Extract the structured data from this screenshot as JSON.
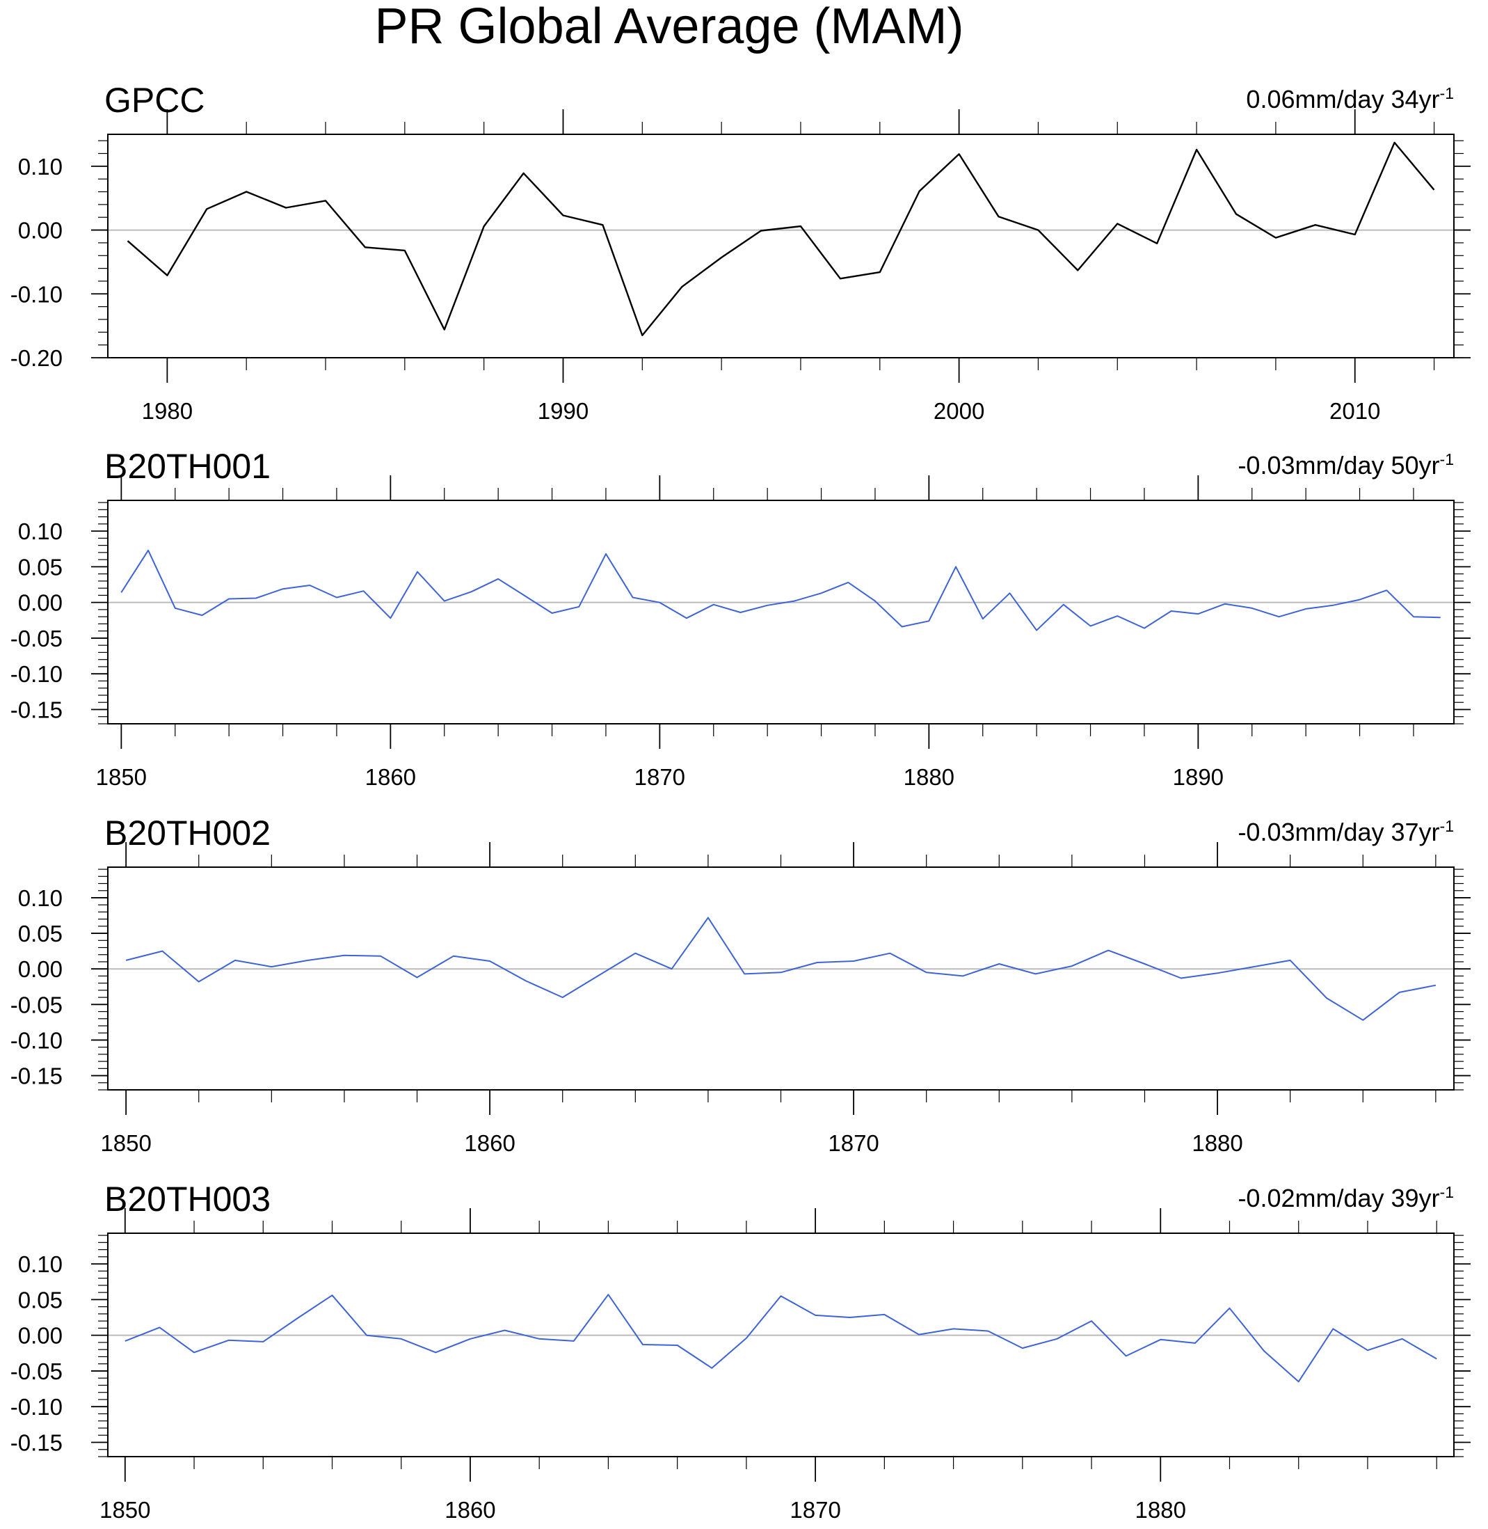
{
  "title": "PR Global Average (MAM)",
  "colors": {
    "observed": "#000000",
    "model": "#3d63d8",
    "zero_line": "#bbbbbb",
    "frame": "#000000"
  },
  "chart_data": [
    {
      "type": "line",
      "title": "GPCC",
      "trend": {
        "value": "0.06mm/day 34yr",
        "sup": "-1"
      },
      "color": "#000000",
      "xlim": [
        1978.5,
        2012.5
      ],
      "ylim": [
        -0.2,
        0.15
      ],
      "yticks": [
        0.1,
        0.0,
        -0.1,
        -0.2
      ],
      "ytick_labels": [
        "0.10",
        "0.00",
        "-0.10",
        "-0.20"
      ],
      "xticks": [
        1980,
        1990,
        2000,
        2010
      ],
      "xtick_labels": [
        "1980",
        "1990",
        "2000",
        "2010"
      ],
      "x_start": 1979,
      "values": [
        -0.017,
        -0.071,
        0.033,
        0.06,
        0.035,
        0.046,
        -0.027,
        -0.032,
        -0.156,
        0.006,
        0.089,
        0.023,
        0.008,
        -0.165,
        -0.089,
        -0.043,
        -0.001,
        0.006,
        -0.076,
        -0.066,
        0.061,
        0.119,
        0.021,
        0.0,
        -0.063,
        0.01,
        -0.021,
        0.126,
        0.025,
        -0.012,
        0.008,
        -0.007,
        0.137,
        0.063
      ]
    },
    {
      "type": "line",
      "title": "B20TH001",
      "trend": {
        "value": "-0.03mm/day 50yr",
        "sup": "-1"
      },
      "color": "#3d63d8",
      "xlim": [
        1849.5,
        1899.5
      ],
      "ylim": [
        -0.17,
        0.143
      ],
      "yticks": [
        0.1,
        0.05,
        0.0,
        -0.05,
        -0.1,
        -0.15
      ],
      "ytick_labels": [
        "0.10",
        "0.05",
        "0.00",
        "-0.05",
        "-0.10",
        "-0.15"
      ],
      "xticks": [
        1850,
        1860,
        1870,
        1880,
        1890
      ],
      "xtick_labels": [
        "1850",
        "1860",
        "1870",
        "1880",
        "1890"
      ],
      "x_start": 1850,
      "values": [
        0.014,
        0.073,
        -0.008,
        -0.018,
        0.005,
        0.006,
        0.019,
        0.024,
        0.007,
        0.016,
        -0.022,
        0.043,
        0.002,
        0.015,
        0.033,
        0.009,
        -0.015,
        -0.006,
        0.068,
        0.007,
        0.0,
        -0.022,
        -0.003,
        -0.014,
        -0.004,
        0.002,
        0.013,
        0.028,
        0.002,
        -0.034,
        -0.026,
        0.05,
        -0.023,
        0.013,
        -0.039,
        -0.003,
        -0.033,
        -0.019,
        -0.036,
        -0.012,
        -0.016,
        -0.002,
        -0.008,
        -0.02,
        -0.009,
        -0.004,
        0.004,
        0.017,
        -0.02,
        -0.021
      ]
    },
    {
      "type": "line",
      "title": "B20TH002",
      "trend": {
        "value": "-0.03mm/day 37yr",
        "sup": "-1"
      },
      "color": "#3d63d8",
      "xlim": [
        1849.5,
        1886.5
      ],
      "ylim": [
        -0.17,
        0.143
      ],
      "yticks": [
        0.1,
        0.05,
        0.0,
        -0.05,
        -0.1,
        -0.15
      ],
      "ytick_labels": [
        "0.10",
        "0.05",
        "0.00",
        "-0.05",
        "-0.10",
        "-0.15"
      ],
      "xticks": [
        1850,
        1860,
        1870,
        1880
      ],
      "xtick_labels": [
        "1850",
        "1860",
        "1870",
        "1880"
      ],
      "x_start": 1850,
      "values": [
        0.012,
        0.025,
        -0.018,
        0.012,
        0.003,
        0.012,
        0.019,
        0.018,
        -0.012,
        0.018,
        0.011,
        -0.017,
        -0.04,
        -0.009,
        0.022,
        0.0,
        0.072,
        -0.007,
        -0.005,
        0.009,
        0.011,
        0.022,
        -0.005,
        -0.01,
        0.007,
        -0.007,
        0.004,
        0.026,
        0.007,
        -0.013,
        -0.006,
        0.003,
        0.012,
        -0.041,
        -0.072,
        -0.033,
        -0.023
      ]
    },
    {
      "type": "line",
      "title": "B20TH003",
      "trend": {
        "value": "-0.02mm/day 39yr",
        "sup": "-1"
      },
      "color": "#3d63d8",
      "xlim": [
        1849.5,
        1888.5
      ],
      "ylim": [
        -0.17,
        0.143
      ],
      "yticks": [
        0.1,
        0.05,
        0.0,
        -0.05,
        -0.1,
        -0.15
      ],
      "ytick_labels": [
        "0.10",
        "0.05",
        "0.00",
        "-0.05",
        "-0.10",
        "-0.15"
      ],
      "xticks": [
        1850,
        1860,
        1870,
        1880
      ],
      "xtick_labels": [
        "1850",
        "1860",
        "1870",
        "1880"
      ],
      "x_start": 1850,
      "values": [
        -0.008,
        0.011,
        -0.024,
        -0.007,
        -0.009,
        0.024,
        0.056,
        0.0,
        -0.005,
        -0.024,
        -0.005,
        0.007,
        -0.005,
        -0.008,
        0.057,
        -0.013,
        -0.014,
        -0.046,
        -0.004,
        0.055,
        0.028,
        0.025,
        0.029,
        0.001,
        0.009,
        0.006,
        -0.018,
        -0.005,
        0.02,
        -0.029,
        -0.006,
        -0.011,
        0.038,
        -0.022,
        -0.065,
        0.009,
        -0.021,
        -0.005,
        -0.033
      ]
    }
  ]
}
